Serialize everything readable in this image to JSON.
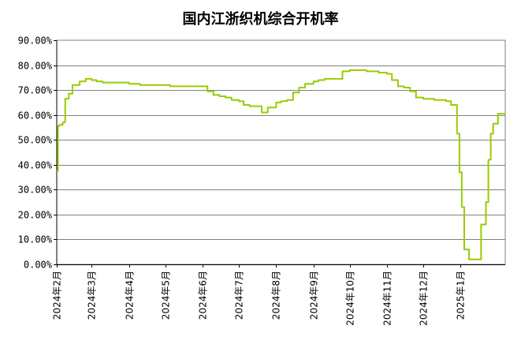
{
  "chart_data": {
    "type": "line",
    "title": "国内江浙织机综合开机率",
    "xlabel": "",
    "ylabel": "",
    "ylim": [
      0,
      90
    ],
    "yticks": [
      "90.00%",
      "80.00%",
      "70.00%",
      "60.00%",
      "50.00%",
      "40.00%",
      "30.00%",
      "20.00%",
      "10.00%",
      "0.00%"
    ],
    "xtick_labels": [
      "2024年2月",
      "2024年3月",
      "2024年4月",
      "2024年5月",
      "2024年6月",
      "2024年7月",
      "2024年8月",
      "2024年9月",
      "2024年10月",
      "2024年11月",
      "2024年12月",
      "2025年1月"
    ],
    "grid": true,
    "colors": {
      "line": "#99cc00",
      "grid": "#808080",
      "axis": "#000000"
    },
    "series": [
      {
        "x": [
          "2024-02-01",
          "2024-02-02",
          "2024-02-03",
          "2024-02-06",
          "2024-02-08",
          "2024-02-11",
          "2024-02-14",
          "2024-02-17",
          "2024-02-20",
          "2024-02-25",
          "2024-03-01",
          "2024-03-05",
          "2024-03-10",
          "2024-03-15",
          "2024-03-20",
          "2024-03-25",
          "2024-04-01",
          "2024-04-05",
          "2024-04-10",
          "2024-04-15",
          "2024-04-20",
          "2024-04-25",
          "2024-05-01",
          "2024-05-05",
          "2024-05-10",
          "2024-05-15",
          "2024-05-20",
          "2024-05-25",
          "2024-06-01",
          "2024-06-05",
          "2024-06-10",
          "2024-06-15",
          "2024-06-20",
          "2024-06-25",
          "2024-07-01",
          "2024-07-05",
          "2024-07-10",
          "2024-07-15",
          "2024-07-20",
          "2024-07-25",
          "2024-08-01",
          "2024-08-05",
          "2024-08-10",
          "2024-08-15",
          "2024-08-20",
          "2024-08-25",
          "2024-09-01",
          "2024-09-05",
          "2024-09-10",
          "2024-09-15",
          "2024-09-20",
          "2024-09-25",
          "2024-10-01",
          "2024-10-05",
          "2024-10-10",
          "2024-10-15",
          "2024-10-20",
          "2024-10-25",
          "2024-11-01",
          "2024-11-05",
          "2024-11-10",
          "2024-11-15",
          "2024-11-20",
          "2024-11-25",
          "2024-12-01",
          "2024-12-05",
          "2024-12-10",
          "2024-12-15",
          "2024-12-20",
          "2024-12-24",
          "2024-12-27",
          "2024-12-29",
          "2024-12-31",
          "2025-01-02",
          "2025-01-04",
          "2025-01-08",
          "2025-01-12",
          "2025-01-15",
          "2025-01-18",
          "2025-01-20",
          "2025-01-22",
          "2025-01-24",
          "2025-01-26",
          "2025-01-28",
          "2025-01-30",
          "2025-02-01",
          "2025-02-04",
          "2025-02-07"
        ],
        "values": [
          37.5,
          55.5,
          56.0,
          57.0,
          66.5,
          68.5,
          72.0,
          72.0,
          73.5,
          74.5,
          74.0,
          73.5,
          73.0,
          73.0,
          73.0,
          73.0,
          72.5,
          72.5,
          72.0,
          72.0,
          72.0,
          72.0,
          72.0,
          71.5,
          71.5,
          71.5,
          71.5,
          71.5,
          71.5,
          69.5,
          68.0,
          67.5,
          67.0,
          66.0,
          65.5,
          64.0,
          63.5,
          63.5,
          61.0,
          63.0,
          65.0,
          65.5,
          66.0,
          69.0,
          71.0,
          72.5,
          73.5,
          74.0,
          74.5,
          74.5,
          74.5,
          77.5,
          78.0,
          78.0,
          78.0,
          77.5,
          77.5,
          77.0,
          76.5,
          74.0,
          71.5,
          71.0,
          69.5,
          67.0,
          66.5,
          66.5,
          66.0,
          66.0,
          65.5,
          64.0,
          64.0,
          52.5,
          37.0,
          23.0,
          6.0,
          2.0,
          2.0,
          2.0,
          16.0,
          16.0,
          25.0,
          42.0,
          52.5,
          56.5,
          56.5,
          60.5,
          60.5,
          60.5
        ]
      }
    ]
  }
}
